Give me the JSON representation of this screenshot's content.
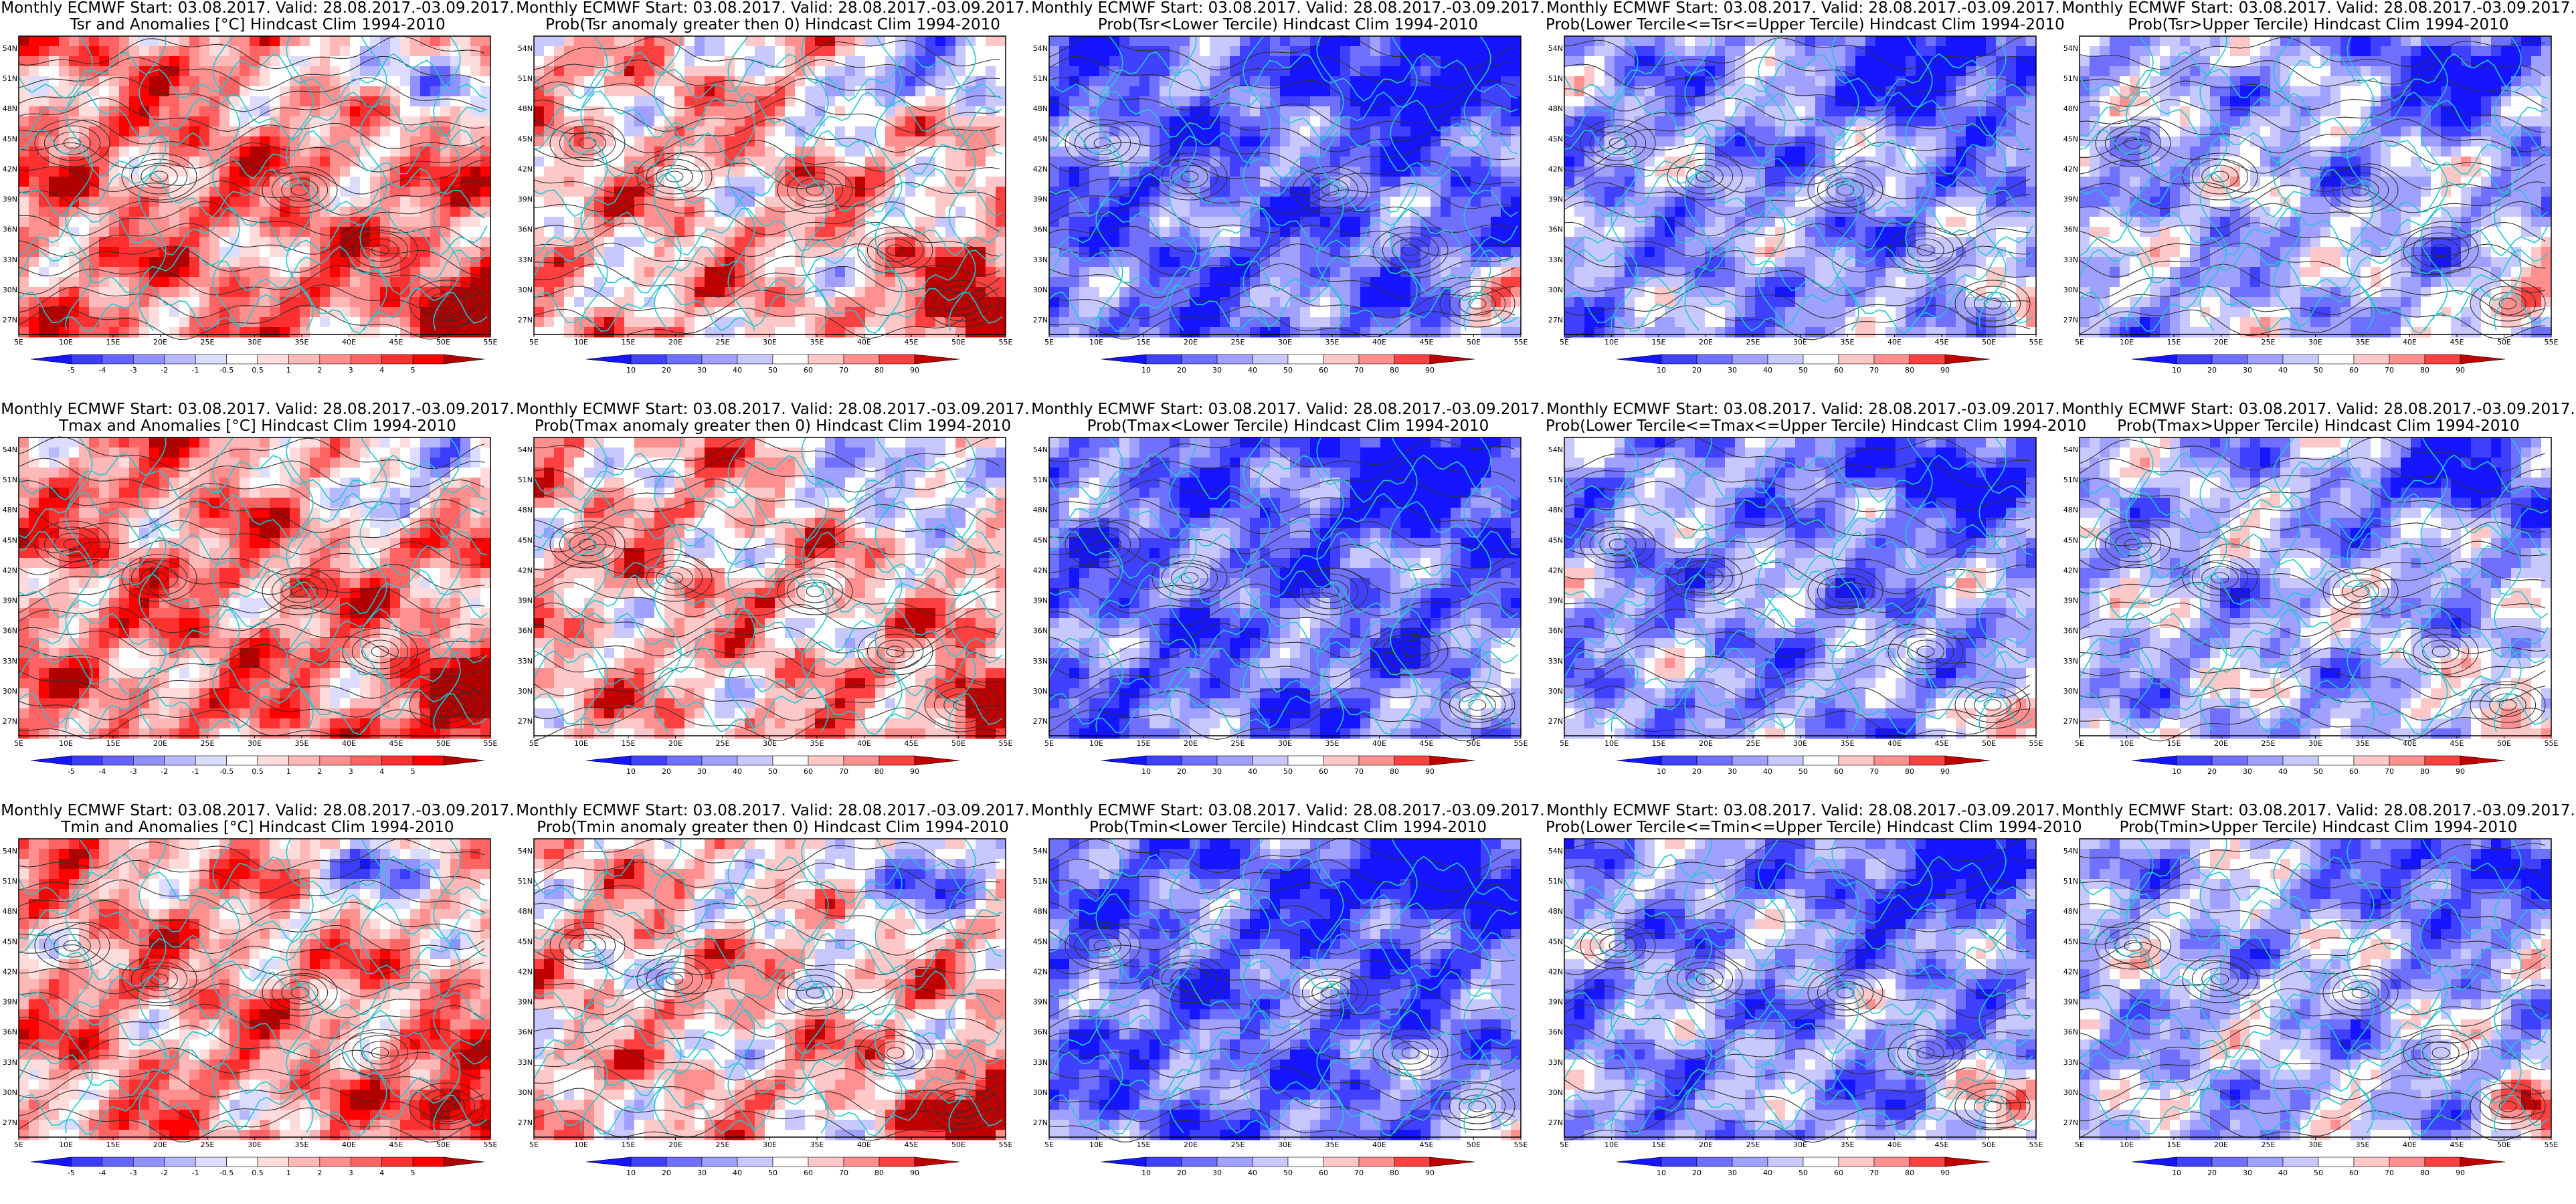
{
  "figure": {
    "title_prefix": "Monthly ECMWF Start: 03.08.2017. Valid: 28.08.2017.-03.09.2017.",
    "lat_labels": [
      "54N",
      "51N",
      "48N",
      "45N",
      "42N",
      "39N",
      "36N",
      "33N",
      "30N",
      "27N"
    ],
    "lon_labels": [
      "5E",
      "10E",
      "15E",
      "20E",
      "25E",
      "30E",
      "35E",
      "40E",
      "45E",
      "50E",
      "55E"
    ],
    "colors": {
      "coast": "#22c8d2",
      "contour": "#303030",
      "anom": [
        "#1515ff",
        "#3c3cff",
        "#6464ff",
        "#9090ff",
        "#b8b8ff",
        "#dcdcff",
        "#ffffff",
        "#ffdcdc",
        "#ffb8b8",
        "#ff9090",
        "#ff6464",
        "#ff3030",
        "#ff0000",
        "#b00000"
      ],
      "prob": [
        "#1515ff",
        "#4040ff",
        "#7070ff",
        "#a0a0ff",
        "#c8c8ff",
        "#ffffff",
        "#ffc8c8",
        "#ff9090",
        "#ff4040",
        "#c00000"
      ]
    },
    "anom_scale_labels": [
      "-5",
      "-4",
      "-3",
      "-2",
      "-1",
      "-0.5",
      "0.5",
      "1",
      "2",
      "3",
      "4",
      "5"
    ],
    "prob_scale_labels": [
      "10",
      "20",
      "30",
      "40",
      "50",
      "60",
      "70",
      "80",
      "90"
    ],
    "rows": [
      {
        "variable": "Tsr",
        "panels": [
          {
            "name": "tsr-anomalies",
            "subtitle": "Tsr and Anomalies [°C] Hindcast Clim 1994-2010",
            "kind": "anom",
            "bias": 0.6
          },
          {
            "name": "tsr-prob-positive",
            "subtitle": "Prob(Tsr anomaly greater then 0) Hindcast Clim 1994-2010",
            "kind": "prob",
            "bias": 0.55
          },
          {
            "name": "tsr-prob-lower-tercile",
            "subtitle": "Prob(Tsr<Lower Tercile) Hindcast Clim 1994-2010",
            "kind": "prob",
            "bias": -0.8
          },
          {
            "name": "tsr-prob-middle-tercile",
            "subtitle": "Prob(Lower Tercile<=Tsr<=Upper Tercile) Hindcast Clim 1994-2010",
            "kind": "prob",
            "bias": -0.5
          },
          {
            "name": "tsr-prob-upper-tercile",
            "subtitle": "Prob(Tsr>Upper Tercile) Hindcast Clim 1994-2010",
            "kind": "prob",
            "bias": -0.3
          }
        ]
      },
      {
        "variable": "Tmax",
        "panels": [
          {
            "name": "tmax-anomalies",
            "subtitle": "Tmax and Anomalies [°C] Hindcast Clim 1994-2010",
            "kind": "anom",
            "bias": 0.6
          },
          {
            "name": "tmax-prob-positive",
            "subtitle": "Prob(Tmax anomaly greater then 0) Hindcast Clim 1994-2010",
            "kind": "prob",
            "bias": 0.55
          },
          {
            "name": "tmax-prob-lower-tercile",
            "subtitle": "Prob(Tmax<Lower Tercile) Hindcast Clim 1994-2010",
            "kind": "prob",
            "bias": -0.8
          },
          {
            "name": "tmax-prob-middle-tercile",
            "subtitle": "Prob(Lower Tercile<=Tmax<=Upper Tercile) Hindcast Clim 1994-2010",
            "kind": "prob",
            "bias": -0.5
          },
          {
            "name": "tmax-prob-upper-tercile",
            "subtitle": "Prob(Tmax>Upper Tercile) Hindcast Clim 1994-2010",
            "kind": "prob",
            "bias": -0.3
          }
        ]
      },
      {
        "variable": "Tmin",
        "panels": [
          {
            "name": "tmin-anomalies",
            "subtitle": "Tmin and Anomalies [°C] Hindcast Clim 1994-2010",
            "kind": "anom",
            "bias": 0.5
          },
          {
            "name": "tmin-prob-positive",
            "subtitle": "Prob(Tmin anomaly greater then 0) Hindcast Clim 1994-2010",
            "kind": "prob",
            "bias": 0.5
          },
          {
            "name": "tmin-prob-lower-tercile",
            "subtitle": "Prob(Tmin<Lower Tercile) Hindcast Clim 1994-2010",
            "kind": "prob",
            "bias": -0.8
          },
          {
            "name": "tmin-prob-middle-tercile",
            "subtitle": "Prob(Lower Tercile<=Tmin<=Upper Tercile) Hindcast Clim 1994-2010",
            "kind": "prob",
            "bias": -0.5
          },
          {
            "name": "tmin-prob-upper-tercile",
            "subtitle": "Prob(Tmin>Upper Tercile) Hindcast Clim 1994-2010",
            "kind": "prob",
            "bias": -0.3
          }
        ]
      }
    ]
  }
}
